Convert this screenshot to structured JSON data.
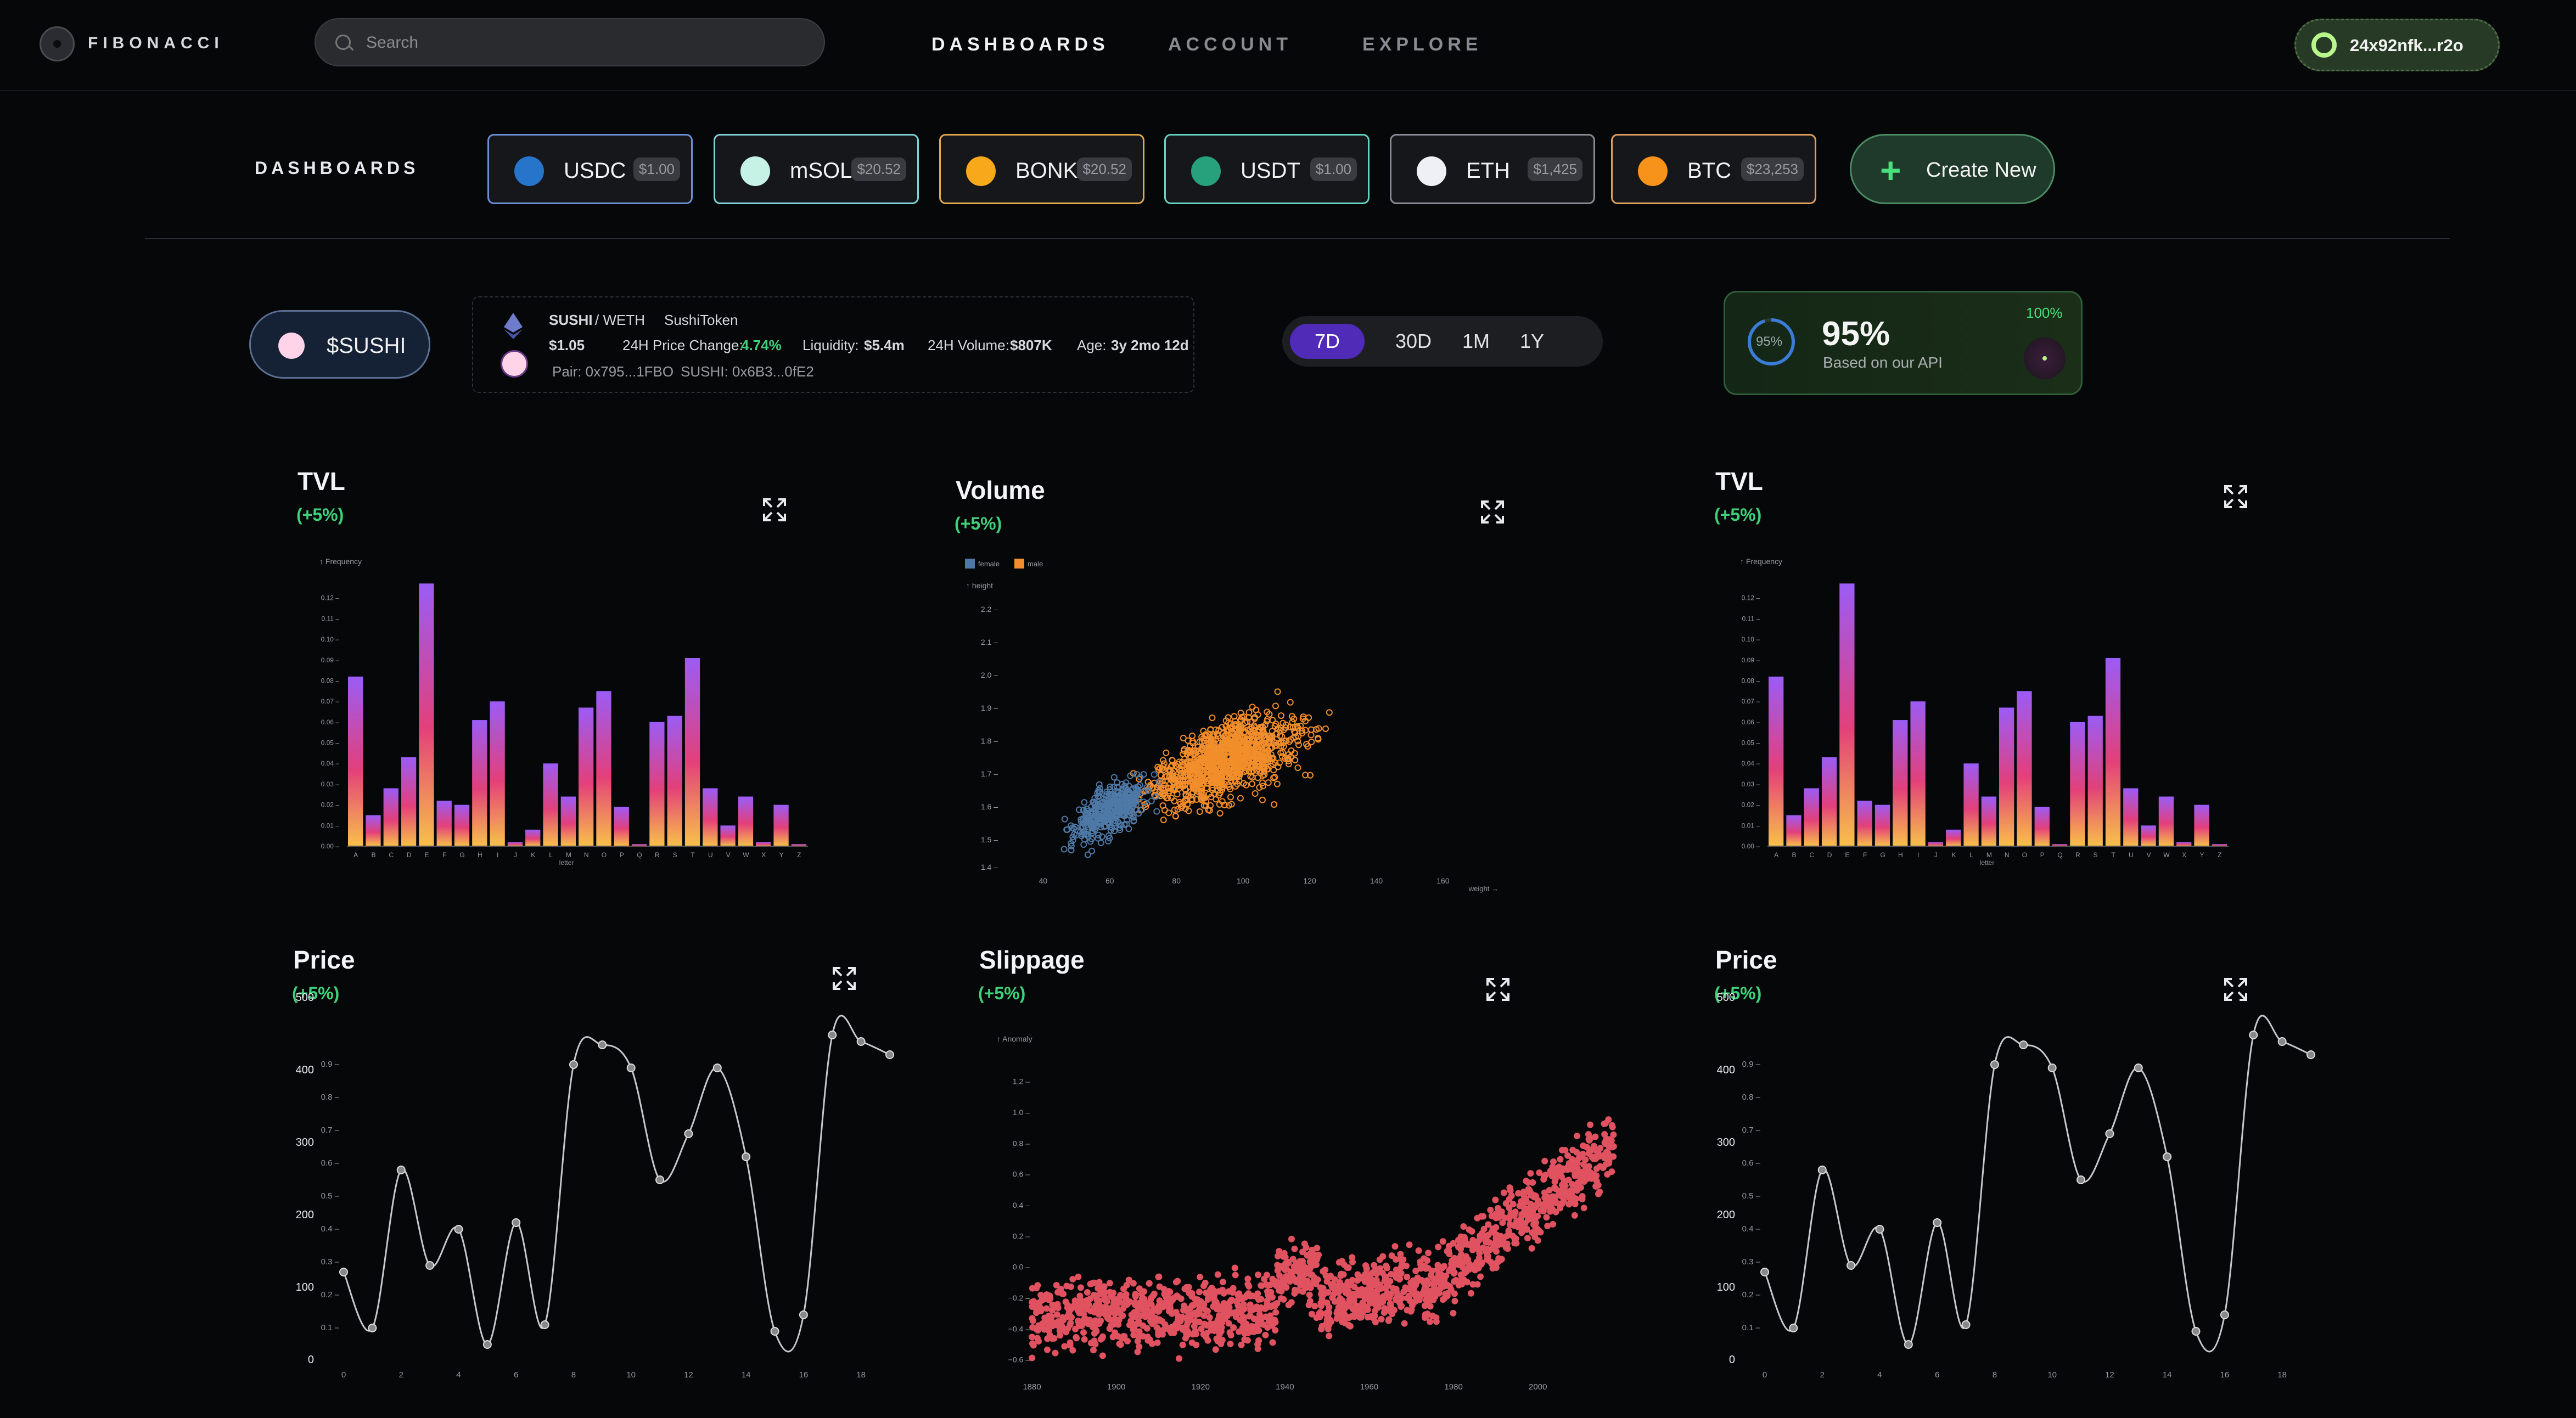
{
  "header": {
    "logo_text": "FIBONACCI",
    "search": {
      "placeholder": "Search"
    },
    "nav": [
      {
        "label": "DASHBOARDS",
        "active": true
      },
      {
        "label": "ACCOUNT",
        "active": false
      },
      {
        "label": "EXPLORE",
        "active": false
      }
    ],
    "wallet": "24x92nfk...r2o"
  },
  "dashboards": {
    "label": "DASHBOARDS",
    "tokens": [
      {
        "name": "USDC",
        "price": "$1.00",
        "border": "#6e8fd6",
        "icon": "#2775ca"
      },
      {
        "name": "mSOL",
        "price": "$20.52",
        "border": "#7fd3d6",
        "icon": "#c6f2e6"
      },
      {
        "name": "BONK",
        "price": "$20.52",
        "border": "#e0a94a",
        "icon": "#f7a81b"
      },
      {
        "name": "USDT",
        "price": "$1.00",
        "border": "#66d2c0",
        "icon": "#26a17b"
      },
      {
        "name": "ETH",
        "price": "$1,425",
        "border": "#8a8b95",
        "icon": "#eef0f6"
      },
      {
        "name": "BTC",
        "price": "$23,253",
        "border": "#e0a060",
        "icon": "#f7931a"
      }
    ],
    "create_label": "Create New"
  },
  "pair": {
    "button": "$SUSHI",
    "base": "SUSHI",
    "quote": "/ WETH",
    "token_name": "SushiToken",
    "price": "$1.05",
    "change_label": "24H Price Change:",
    "change_value": "4.74%",
    "liquidity_label": "Liquidity:",
    "liquidity_value": "$5.4m",
    "volume_label": "24H Volume:",
    "volume_value": "$807K",
    "age_label": "Age:",
    "age_value": "3y 2mo 12d",
    "pair_addr": "Pair: 0x795...1FBO",
    "token_addr": "SUSHI: 0x6B3...0fE2"
  },
  "ranges": [
    "7D",
    "30D",
    "1M",
    "1Y"
  ],
  "score": {
    "ring": "95%",
    "value": "95%",
    "subtitle": "Based on our API",
    "max": "100%",
    "level": 0.95
  },
  "cards": {
    "tvl1": {
      "title": "TVL",
      "change": "(+5%)"
    },
    "volume": {
      "title": "Volume",
      "change": "(+5%)"
    },
    "tvl2": {
      "title": "TVL",
      "change": "(+5%)"
    },
    "price1": {
      "title": "Price",
      "change": "(+5%)"
    },
    "slippage": {
      "title": "Slippage",
      "change": "(+5%)"
    },
    "price2": {
      "title": "Price",
      "change": "(+5%)"
    }
  },
  "chart_data": [
    {
      "id": "tvl",
      "type": "bar",
      "ylabel": "↑ Frequency",
      "xlabel": "letter",
      "categories": [
        "A",
        "B",
        "C",
        "D",
        "E",
        "F",
        "G",
        "H",
        "I",
        "J",
        "K",
        "L",
        "M",
        "N",
        "O",
        "P",
        "Q",
        "R",
        "S",
        "T",
        "U",
        "V",
        "W",
        "X",
        "Y",
        "Z"
      ],
      "values": [
        0.082,
        0.015,
        0.028,
        0.043,
        0.127,
        0.022,
        0.02,
        0.061,
        0.07,
        0.002,
        0.008,
        0.04,
        0.024,
        0.067,
        0.075,
        0.019,
        0.001,
        0.06,
        0.063,
        0.091,
        0.028,
        0.01,
        0.024,
        0.002,
        0.02,
        0.001
      ],
      "yticks": [
        "0.00",
        "0.01",
        "0.02",
        "0.03",
        "0.04",
        "0.05",
        "0.06",
        "0.07",
        "0.08",
        "0.09",
        "0.10",
        "0.11",
        "0.12"
      ],
      "ylim": [
        0,
        0.13
      ]
    },
    {
      "id": "volume",
      "type": "scatter",
      "xlabel": "weight →",
      "ylabel": "↑ height",
      "legend": [
        "female",
        "male"
      ],
      "series_colors": [
        "#4e79a7",
        "#f28e2b"
      ],
      "xlim": [
        35,
        175
      ],
      "ylim": [
        1.45,
        2.25
      ],
      "xticks": [
        "40",
        "60",
        "80",
        "100",
        "120",
        "140",
        "160"
      ],
      "yticks": [
        "1.5",
        "1.6",
        "1.7",
        "1.8",
        "1.9",
        "2.0",
        "2.1",
        "2.2"
      ],
      "yticks_extra": [
        "1.4"
      ]
    },
    {
      "id": "price",
      "type": "line",
      "x": [
        0,
        1,
        2,
        3,
        4,
        5,
        6,
        7,
        8,
        9,
        10,
        11,
        12,
        13,
        14,
        15,
        16,
        17,
        18,
        19
      ],
      "values": [
        0.27,
        0.1,
        0.58,
        0.29,
        0.4,
        0.05,
        0.42,
        0.11,
        0.9,
        0.96,
        0.89,
        0.55,
        0.69,
        0.89,
        0.62,
        0.09,
        0.14,
        0.99,
        0.97,
        0.93
      ],
      "xticks": [
        "0",
        "2",
        "4",
        "6",
        "8",
        "10",
        "12",
        "14",
        "16",
        "18"
      ],
      "yticks": [
        "0.1",
        "0.2",
        "0.3",
        "0.4",
        "0.5",
        "0.6",
        "0.7",
        "0.8",
        "0.9"
      ],
      "yticks_outer": [
        "0",
        "100",
        "200",
        "300",
        "400",
        "500"
      ],
      "ylim": [
        0,
        1.0
      ]
    },
    {
      "id": "slippage",
      "type": "scatter",
      "ylabel": "↑ Anomaly",
      "color": "#e05260",
      "xlim": [
        1880,
        2018
      ],
      "ylim": [
        -0.75,
        1.38
      ],
      "xticks": [
        "1880",
        "1900",
        "1920",
        "1940",
        "1960",
        "1980",
        "2000"
      ],
      "yticks": [
        "−0.6",
        "−0.4",
        "−0.2",
        "0.0",
        "0.2",
        "0.4",
        "0.6",
        "0.8",
        "1.0",
        "1.2"
      ]
    }
  ]
}
